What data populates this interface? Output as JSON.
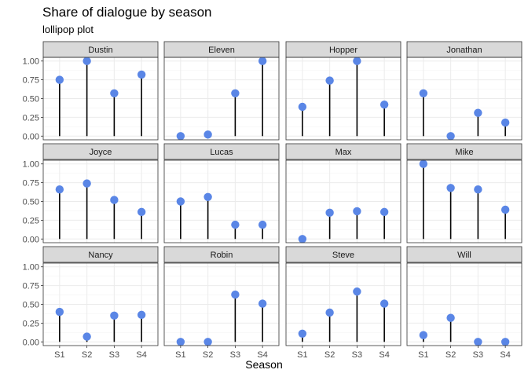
{
  "chart_data": {
    "type": "lollipop",
    "title": "Share of dialogue by season",
    "subtitle": "lollipop plot",
    "xlabel": "Season",
    "ylabel": "",
    "ylim": [
      0,
      1
    ],
    "yticks": [
      "0.00",
      "0.25",
      "0.50",
      "0.75",
      "1.00"
    ],
    "categories": [
      "S1",
      "S2",
      "S3",
      "S4"
    ],
    "colors": {
      "point": "#5a86e6",
      "stick": "#000000",
      "strip": "#d9d9d9"
    },
    "grid": true,
    "facets": [
      {
        "name": "Dustin",
        "values": [
          0.75,
          1.0,
          0.57,
          0.82
        ]
      },
      {
        "name": "Eleven",
        "values": [
          0.0,
          0.02,
          0.57,
          1.0
        ]
      },
      {
        "name": "Hopper",
        "values": [
          0.39,
          0.74,
          1.0,
          0.42
        ]
      },
      {
        "name": "Jonathan",
        "values": [
          0.57,
          0.0,
          0.31,
          0.18
        ]
      },
      {
        "name": "Joyce",
        "values": [
          0.66,
          0.74,
          0.52,
          0.36
        ]
      },
      {
        "name": "Lucas",
        "values": [
          0.5,
          0.56,
          0.19,
          0.19
        ]
      },
      {
        "name": "Max",
        "values": [
          0.0,
          0.35,
          0.37,
          0.36
        ]
      },
      {
        "name": "Mike",
        "values": [
          1.0,
          0.68,
          0.66,
          0.39
        ]
      },
      {
        "name": "Nancy",
        "values": [
          0.4,
          0.07,
          0.35,
          0.36
        ]
      },
      {
        "name": "Robin",
        "values": [
          0.0,
          0.0,
          0.63,
          0.51
        ]
      },
      {
        "name": "Steve",
        "values": [
          0.11,
          0.39,
          0.67,
          0.51
        ]
      },
      {
        "name": "Will",
        "values": [
          0.09,
          0.32,
          0.0,
          0.0
        ]
      }
    ]
  }
}
